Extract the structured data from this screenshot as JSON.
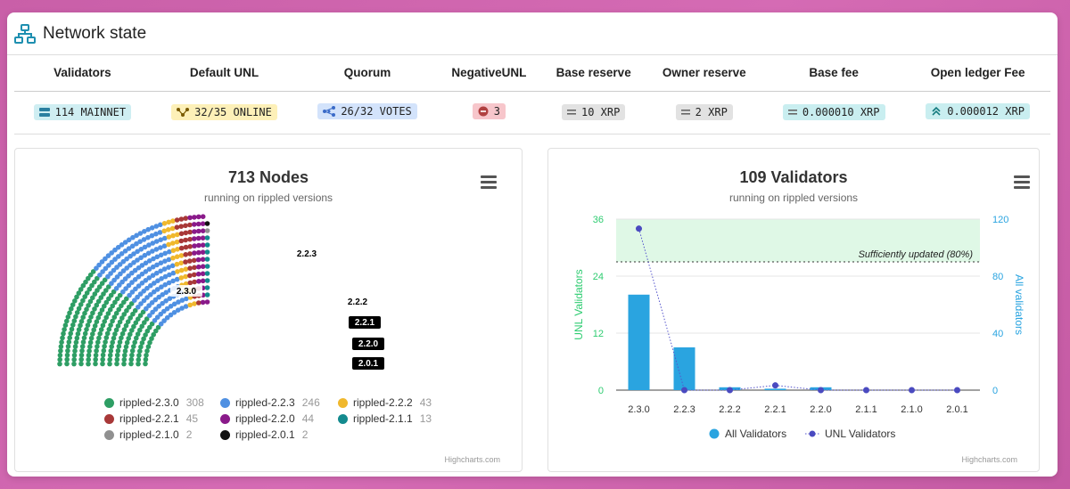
{
  "header": {
    "title": "Network state"
  },
  "stats": [
    {
      "label": "Validators",
      "value": "114 MAINNET",
      "icon": "server-icon",
      "color": "cyan"
    },
    {
      "label": "Default UNL",
      "value": "32/35 ONLINE",
      "icon": "network-nodes-icon",
      "color": "yellow"
    },
    {
      "label": "Quorum",
      "value": "26/32 VOTES",
      "icon": "share-nodes-icon",
      "color": "blue"
    },
    {
      "label": "NegativeUNL",
      "value": "3",
      "icon": "minus-circle-icon",
      "color": "red"
    },
    {
      "label": "Base reserve",
      "value": "10 XRP",
      "icon": "equals-icon",
      "color": "gray"
    },
    {
      "label": "Owner reserve",
      "value": "2 XRP",
      "icon": "equals-icon",
      "color": "gray"
    },
    {
      "label": "Base fee",
      "value": "0.000010 XRP",
      "icon": "equals-icon",
      "color": "teal"
    },
    {
      "label": "Open ledger Fee",
      "value": "0.000012 XRP",
      "icon": "double-chevron-up-icon",
      "color": "teal"
    }
  ],
  "nodes_chart": {
    "title": "713 Nodes",
    "subtitle": "running on rippled versions",
    "credit": "Highcharts.com",
    "legend": [
      {
        "name": "rippled-2.3.0",
        "count": "308",
        "color": "#2e9e64"
      },
      {
        "name": "rippled-2.2.3",
        "count": "246",
        "color": "#4f90e2"
      },
      {
        "name": "rippled-2.2.2",
        "count": "43",
        "color": "#f0b82d"
      },
      {
        "name": "rippled-2.2.1",
        "count": "45",
        "color": "#a83838"
      },
      {
        "name": "rippled-2.2.0",
        "count": "44",
        "color": "#8a1a8a"
      },
      {
        "name": "rippled-2.1.1",
        "count": "13",
        "color": "#138a8e"
      },
      {
        "name": "rippled-2.1.0",
        "count": "2",
        "color": "#909090"
      },
      {
        "name": "rippled-2.0.1",
        "count": "2",
        "color": "#111111"
      }
    ],
    "labels": [
      "2.3.0",
      "2.2.3",
      "2.2.2",
      "2.2.1",
      "2.2.0",
      "2.0.1"
    ]
  },
  "validators_chart": {
    "title": "109 Validators",
    "subtitle": "running on rippled versions",
    "credit": "Highcharts.com",
    "band_label": "Sufficiently updated (80%)",
    "left_axis_title": "UNL Validators",
    "right_axis_title": "All validators",
    "legend_all": "All Validators",
    "legend_unl": "UNL Validators",
    "left_color": "#2ecc71",
    "right_color": "#2aa4e0"
  },
  "chart_data": {
    "type": "bar",
    "categories": [
      "2.3.0",
      "2.2.3",
      "2.2.2",
      "2.2.1",
      "2.2.0",
      "2.1.1",
      "2.1.0",
      "2.0.1"
    ],
    "series": [
      {
        "name": "All Validators",
        "type": "bar",
        "axis": "right",
        "values": [
          67,
          30,
          2,
          1,
          2,
          0,
          0,
          0
        ]
      },
      {
        "name": "UNL Validators",
        "type": "line",
        "axis": "left",
        "values": [
          34,
          0,
          0,
          1,
          0,
          0,
          0,
          0
        ]
      }
    ],
    "y_left": {
      "title": "UNL Validators",
      "ticks": [
        0,
        12,
        24,
        36
      ],
      "range": [
        0,
        36
      ]
    },
    "y_right": {
      "title": "All validators",
      "ticks": [
        0,
        40,
        80,
        120
      ],
      "range": [
        0,
        120
      ]
    },
    "threshold": {
      "value": 27,
      "label": "Sufficiently updated (80%)"
    }
  }
}
